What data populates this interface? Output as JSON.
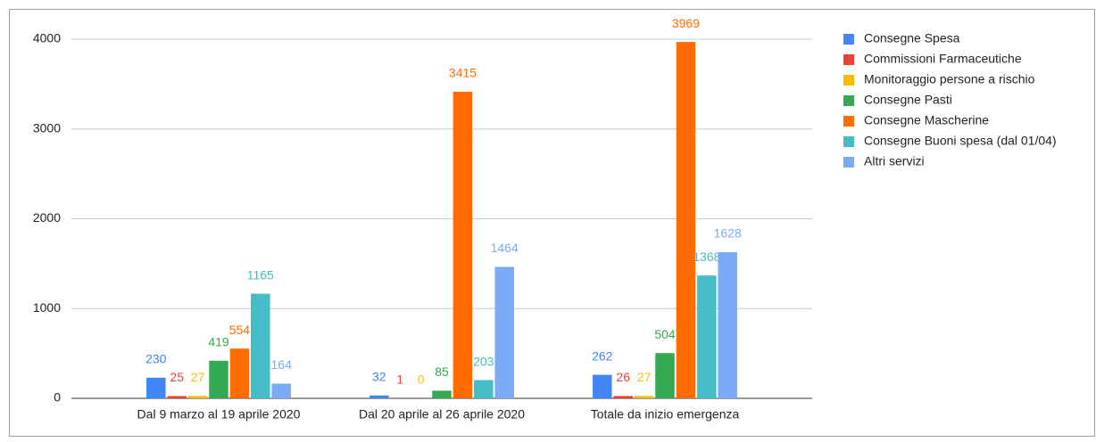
{
  "chart_data": {
    "type": "bar",
    "categories": [
      "Dal 9 marzo al 19 aprile 2020",
      "Dal 20 aprile al 26 aprile 2020",
      "Totale da inizio emergenza"
    ],
    "series": [
      {
        "name": "Consegne Spesa",
        "color": "#4285f4",
        "values": [
          230,
          32,
          262
        ]
      },
      {
        "name": "Commissioni Farmaceutiche",
        "color": "#ea4335",
        "values": [
          25,
          1,
          26
        ]
      },
      {
        "name": "Monitoraggio persone a rischio",
        "color": "#fbbc04",
        "values": [
          27,
          0,
          27
        ]
      },
      {
        "name": "Consegne Pasti",
        "color": "#34a853",
        "values": [
          419,
          85,
          504
        ]
      },
      {
        "name": "Consegne Mascherine",
        "color": "#ff6d01",
        "values": [
          554,
          3415,
          3969
        ]
      },
      {
        "name": "Consegne Buoni spesa (dal 01/04)",
        "color": "#46bdc6",
        "values": [
          1165,
          203,
          1368
        ]
      },
      {
        "name": "Altri servizi",
        "color": "#7baaf7",
        "values": [
          164,
          1464,
          1628
        ]
      }
    ],
    "ylim": [
      0,
      4000
    ],
    "yticks": [
      0,
      1000,
      2000,
      3000,
      4000
    ],
    "grid": true,
    "legend": "right"
  }
}
